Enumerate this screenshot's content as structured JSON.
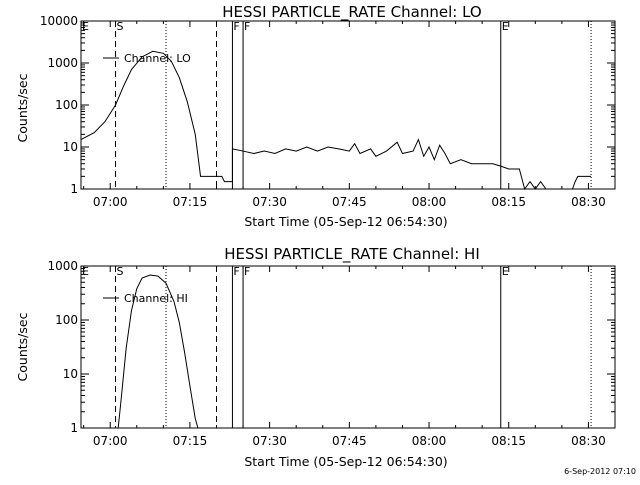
{
  "footer": {
    "timestamp": "6-Sep-2012 07:10"
  },
  "chart_data": [
    {
      "type": "line",
      "title": "HESSI PARTICLE_RATE Channel: LO",
      "xlabel": "Start Time (05-Sep-12 06:54:30)",
      "ylabel": "Counts/sec",
      "yscale": "log",
      "ylim": [
        1,
        10000
      ],
      "xlim": [
        "06:54:30",
        "08:35:00"
      ],
      "x_ticks": [
        "07:00",
        "07:15",
        "07:30",
        "07:45",
        "08:00",
        "08:15",
        "08:30"
      ],
      "y_ticks": [
        "1",
        "10",
        "100",
        "1000",
        "10000"
      ],
      "legend": {
        "position": "top-left",
        "entries": [
          "Channel: LO"
        ]
      },
      "markers": [
        {
          "label": "E",
          "time": "06:54:30",
          "style": "solid"
        },
        {
          "label": "S",
          "time": "07:01:00",
          "style": "dashed"
        },
        {
          "label": "",
          "time": "07:10:30",
          "style": "dotted"
        },
        {
          "label": "",
          "time": "07:20:00",
          "style": "dashed"
        },
        {
          "label": "F",
          "time": "07:23:00",
          "style": "solid"
        },
        {
          "label": "F",
          "time": "07:25:00",
          "style": "solid"
        },
        {
          "label": "E",
          "time": "08:13:30",
          "style": "solid"
        },
        {
          "label": "",
          "time": "08:30:30",
          "style": "dotted"
        }
      ],
      "series": [
        {
          "name": "Channel: LO",
          "points": [
            [
              "06:54:30",
              15
            ],
            [
              "06:57:00",
              22
            ],
            [
              "06:59:00",
              40
            ],
            [
              "07:01:00",
              100
            ],
            [
              "07:02:30",
              280
            ],
            [
              "07:04:00",
              700
            ],
            [
              "07:06:00",
              1400
            ],
            [
              "07:08:00",
              1900
            ],
            [
              "07:10:00",
              1700
            ],
            [
              "07:11:30",
              1100
            ],
            [
              "07:13:00",
              450
            ],
            [
              "07:14:30",
              120
            ],
            [
              "07:16:00",
              20
            ],
            [
              "07:17:00",
              2
            ],
            [
              "07:21:00",
              2
            ],
            [
              "07:21:30",
              1.5
            ],
            [
              "07:23:00",
              1.5
            ],
            [
              "07:23:00",
              9
            ],
            [
              "07:25:00",
              8
            ],
            [
              "07:27:00",
              7
            ],
            [
              "07:29:00",
              8
            ],
            [
              "07:31:00",
              7
            ],
            [
              "07:33:00",
              9
            ],
            [
              "07:35:00",
              8
            ],
            [
              "07:37:00",
              10
            ],
            [
              "07:39:00",
              8
            ],
            [
              "07:41:00",
              10
            ],
            [
              "07:43:00",
              9
            ],
            [
              "07:45:00",
              8
            ],
            [
              "07:46:00",
              12
            ],
            [
              "07:47:00",
              7
            ],
            [
              "07:49:00",
              9
            ],
            [
              "07:50:00",
              6
            ],
            [
              "07:52:00",
              8
            ],
            [
              "07:54:00",
              13
            ],
            [
              "07:55:00",
              7
            ],
            [
              "07:57:00",
              8
            ],
            [
              "07:58:00",
              15
            ],
            [
              "07:59:00",
              6
            ],
            [
              "08:00:00",
              10
            ],
            [
              "08:01:00",
              5
            ],
            [
              "08:02:00",
              11
            ],
            [
              "08:03:00",
              7
            ],
            [
              "08:04:00",
              4
            ],
            [
              "08:06:00",
              5
            ],
            [
              "08:08:00",
              4
            ],
            [
              "08:10:00",
              4
            ],
            [
              "08:12:00",
              4
            ],
            [
              "08:13:30",
              3.5
            ],
            [
              "08:15:00",
              3
            ],
            [
              "08:17:00",
              3
            ],
            [
              "08:18:00",
              1
            ],
            [
              "08:19:00",
              1.5
            ],
            [
              "08:20:00",
              1
            ],
            [
              "08:21:00",
              1.5
            ],
            [
              "08:22:00",
              1
            ],
            [
              "08:27:00",
              1
            ],
            [
              "08:27:30",
              1.5
            ],
            [
              "08:28:00",
              2
            ],
            [
              "08:30:30",
              2
            ]
          ]
        }
      ]
    },
    {
      "type": "line",
      "title": "HESSI PARTICLE_RATE Channel: HI",
      "xlabel": "Start Time (05-Sep-12 06:54:30)",
      "ylabel": "Counts/sec",
      "yscale": "log",
      "ylim": [
        1,
        1000
      ],
      "xlim": [
        "06:54:30",
        "08:35:00"
      ],
      "x_ticks": [
        "07:00",
        "07:15",
        "07:30",
        "07:45",
        "08:00",
        "08:15",
        "08:30"
      ],
      "y_ticks": [
        "1",
        "10",
        "100",
        "1000"
      ],
      "legend": {
        "position": "top-left",
        "entries": [
          "Channel: HI"
        ]
      },
      "markers": [
        {
          "label": "E",
          "time": "06:54:30",
          "style": "solid"
        },
        {
          "label": "S",
          "time": "07:01:00",
          "style": "dashed"
        },
        {
          "label": "",
          "time": "07:10:30",
          "style": "dotted"
        },
        {
          "label": "",
          "time": "07:20:00",
          "style": "dashed"
        },
        {
          "label": "F",
          "time": "07:23:00",
          "style": "solid"
        },
        {
          "label": "F",
          "time": "07:25:00",
          "style": "solid"
        },
        {
          "label": "E",
          "time": "08:13:30",
          "style": "solid"
        },
        {
          "label": "",
          "time": "08:30:30",
          "style": "dotted"
        }
      ],
      "series": [
        {
          "name": "Channel: HI",
          "points": [
            [
              "07:01:30",
              1
            ],
            [
              "07:02:00",
              3
            ],
            [
              "07:03:00",
              30
            ],
            [
              "07:04:00",
              150
            ],
            [
              "07:05:00",
              380
            ],
            [
              "07:06:00",
              600
            ],
            [
              "07:07:30",
              680
            ],
            [
              "07:09:00",
              650
            ],
            [
              "07:10:30",
              480
            ],
            [
              "07:12:00",
              220
            ],
            [
              "07:13:00",
              90
            ],
            [
              "07:14:00",
              25
            ],
            [
              "07:15:00",
              6
            ],
            [
              "07:16:00",
              1.5
            ],
            [
              "07:16:30",
              1
            ]
          ]
        }
      ]
    }
  ]
}
